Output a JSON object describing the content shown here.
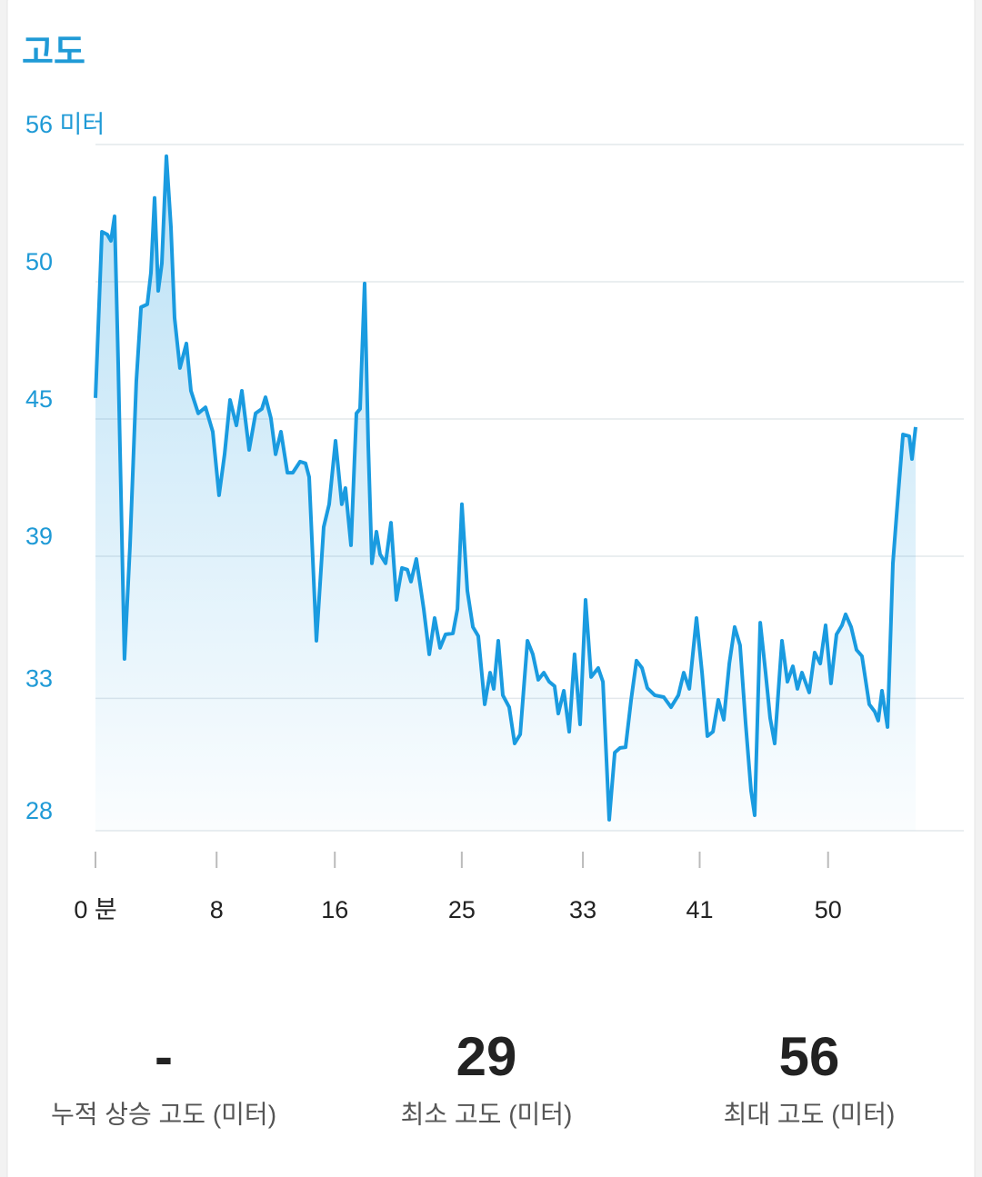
{
  "title": "고도",
  "chart_data": {
    "type": "line",
    "ylim": [
      28,
      56
    ],
    "yticks": [
      28,
      {
        "value": 33.4,
        "label": "33"
      },
      {
        "value": 39.2,
        "label": "39"
      },
      {
        "value": 44.8,
        "label": "45"
      },
      {
        "value": 50.4,
        "label": "50"
      },
      {
        "value": 56,
        "label": "56 미터"
      }
    ],
    "xlim": [
      0,
      59.5
    ],
    "xticks": [
      {
        "value": 0,
        "label": "0 분"
      },
      {
        "value": 8.3,
        "label": "8"
      },
      {
        "value": 16.4,
        "label": "16"
      },
      {
        "value": 25.1,
        "label": "25"
      },
      {
        "value": 33.4,
        "label": "33"
      },
      {
        "value": 41.4,
        "label": "41"
      },
      {
        "value": 50.2,
        "label": "50"
      }
    ],
    "grid": true,
    "series": [
      {
        "color": "#1a9be0",
        "x": [
          0,
          0.44,
          0.81,
          1.06,
          1.31,
          1.56,
          1.99,
          2.37,
          2.8,
          3.12,
          3.55,
          3.8,
          4.05,
          4.3,
          4.55,
          4.86,
          5.17,
          5.42,
          5.79,
          6.23,
          6.54,
          7.04,
          7.54,
          8.04,
          8.47,
          8.85,
          9.22,
          9.66,
          10.03,
          10.53,
          10.97,
          11.4,
          11.65,
          12.02,
          12.34,
          12.71,
          13.15,
          13.52,
          14.02,
          14.39,
          14.64,
          15.14,
          15.64,
          16.01,
          16.45,
          16.88,
          17.13,
          17.51,
          17.88,
          18.13,
          18.44,
          18.69,
          18.94,
          19.25,
          19.5,
          19.88,
          20.25,
          20.62,
          21,
          21.37,
          21.62,
          21.99,
          22.49,
          22.87,
          23.24,
          23.61,
          23.99,
          24.49,
          24.8,
          25.11,
          25.48,
          25.86,
          26.23,
          26.67,
          27.04,
          27.29,
          27.6,
          27.91,
          28.35,
          28.72,
          29.1,
          29.6,
          29.97,
          30.34,
          30.72,
          31.09,
          31.46,
          31.71,
          32.09,
          32.46,
          32.83,
          33.21,
          33.58,
          33.96,
          34.45,
          34.77,
          35.2,
          35.58,
          35.95,
          36.32,
          36.7,
          37.07,
          37.45,
          37.82,
          38.32,
          38.94,
          39.44,
          39.94,
          40.31,
          40.69,
          41.18,
          41.56,
          41.93,
          42.31,
          42.68,
          43.05,
          43.43,
          43.8,
          44.17,
          44.55,
          44.92,
          45.17,
          45.55,
          45.92,
          46.23,
          46.54,
          47.04,
          47.41,
          47.79,
          48.1,
          48.41,
          48.91,
          49.28,
          49.66,
          50.03,
          50.4,
          50.78,
          51.15,
          51.4,
          51.78,
          52.15,
          52.52,
          53.02,
          53.4,
          53.64,
          53.89,
          54.27,
          54.64,
          55.02,
          55.33,
          55.76,
          55.95,
          56.2
        ],
        "values": [
          45.66,
          52.44,
          52.33,
          52.07,
          53.07,
          47.07,
          35.01,
          39.65,
          46.32,
          49.36,
          49.48,
          50.77,
          53.82,
          50.03,
          51.15,
          55.52,
          52.63,
          48.92,
          46.88,
          47.88,
          45.95,
          45.03,
          45.28,
          44.28,
          41.69,
          43.36,
          45.58,
          44.54,
          45.95,
          43.54,
          45.03,
          45.21,
          45.69,
          44.84,
          43.36,
          44.28,
          42.61,
          42.61,
          43.06,
          42.99,
          42.43,
          35.75,
          40.39,
          41.32,
          43.91,
          41.32,
          41.98,
          39.65,
          45.03,
          45.21,
          50.33,
          43.73,
          38.91,
          40.2,
          39.28,
          38.91,
          40.57,
          37.42,
          38.72,
          38.65,
          38.16,
          39.09,
          37.05,
          35.2,
          36.68,
          35.46,
          36.01,
          36.05,
          37.05,
          41.32,
          37.79,
          36.31,
          35.94,
          33.16,
          34.45,
          33.79,
          35.75,
          33.53,
          33.04,
          31.56,
          31.93,
          35.75,
          35.2,
          34.16,
          34.45,
          34.08,
          33.9,
          32.78,
          33.71,
          32.04,
          35.2,
          32.34,
          37.42,
          34.27,
          34.64,
          34.08,
          28.45,
          31.19,
          31.38,
          31.41,
          33.34,
          34.94,
          34.64,
          33.82,
          33.53,
          33.45,
          33.04,
          33.53,
          34.45,
          33.79,
          36.68,
          34.45,
          31.86,
          32.04,
          33.34,
          32.53,
          34.82,
          36.31,
          35.57,
          32.41,
          29.63,
          28.63,
          36.49,
          34.45,
          32.6,
          31.56,
          35.75,
          34.08,
          34.71,
          33.79,
          34.45,
          33.64,
          35.27,
          34.82,
          36.38,
          34.01,
          36.01,
          36.38,
          36.83,
          36.31,
          35.38,
          35.12,
          33.16,
          32.86,
          32.49,
          33.71,
          32.23,
          38.91,
          41.87,
          44.17,
          44.1,
          43.17,
          44.47
        ]
      }
    ]
  },
  "stats": [
    {
      "value": "-",
      "label": "누적 상승 고도 (미터)"
    },
    {
      "value": "29",
      "label": "최소 고도 (미터)"
    },
    {
      "value": "56",
      "label": "최대 고도 (미터)"
    }
  ]
}
